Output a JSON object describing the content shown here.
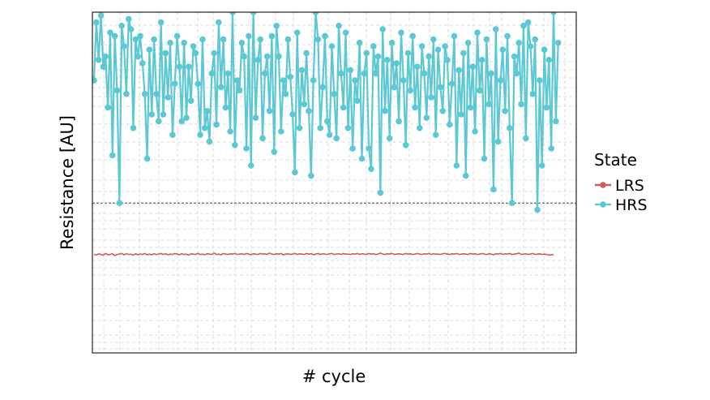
{
  "chart_data": {
    "type": "line",
    "title": "",
    "xlabel": "# cycle",
    "ylabel": "Resistance [AU]",
    "grid": true,
    "x_range": [
      1,
      200
    ],
    "y_range": [
      0,
      100
    ],
    "threshold": 44,
    "legend": {
      "title": "State",
      "position": "right",
      "entries": [
        {
          "label": "LRS",
          "color": "#CD5C5C"
        },
        {
          "label": "HRS",
          "color": "#5BC8D4"
        }
      ]
    },
    "series": [
      {
        "name": "LRS",
        "color": "#CD5C5C",
        "markers": false,
        "values": [
          29.0,
          28.7,
          29.1,
          28.9,
          28.7,
          29.2,
          28.8,
          28.9,
          29.1,
          28.6,
          28.9,
          29.0,
          29.2,
          28.8,
          29.1,
          28.9,
          29.0,
          28.7,
          29.1,
          28.8,
          29.0,
          28.9,
          29.2,
          28.8,
          29.0,
          28.8,
          29.1,
          28.9,
          29.0,
          29.2,
          28.9,
          29.1,
          28.8,
          29.0,
          28.9,
          29.2,
          29.0,
          28.8,
          29.1,
          28.9,
          29.0,
          28.7,
          29.1,
          29.0,
          28.9,
          29.2,
          28.9,
          29.0,
          28.8,
          29.1,
          29.0,
          28.9,
          29.3,
          28.9,
          29.0,
          28.8,
          29.2,
          29.0,
          28.9,
          29.1,
          29.0,
          29.2,
          28.9,
          29.0,
          29.1,
          28.9,
          29.2,
          29.0,
          28.8,
          29.1,
          29.0,
          28.9,
          29.2,
          29.0,
          29.1,
          28.9,
          29.3,
          29.0,
          28.9,
          29.1,
          29.0,
          29.2,
          28.8,
          29.0,
          29.1,
          28.9,
          29.0,
          29.2,
          28.9,
          29.1,
          29.0,
          28.9,
          29.2,
          29.0,
          29.1,
          28.8,
          29.0,
          29.2,
          28.9,
          29.1,
          29.0,
          28.9,
          29.1,
          29.2,
          28.9,
          29.0,
          29.1,
          28.9,
          29.2,
          29.0,
          29.0,
          28.9,
          29.1,
          29.0,
          29.2,
          28.9,
          29.1,
          29.0,
          28.9,
          29.2,
          29.0,
          29.1,
          28.9,
          29.0,
          29.3,
          29.0,
          28.9,
          29.1,
          29.0,
          29.2,
          28.9,
          29.0,
          29.1,
          29.0,
          28.9,
          29.2,
          29.0,
          29.1,
          28.9,
          29.0,
          29.2,
          29.0,
          28.9,
          29.1,
          29.0,
          29.2,
          28.9,
          29.1,
          29.0,
          29.0,
          28.9,
          29.1,
          29.2,
          29.0,
          28.9,
          29.1,
          29.0,
          29.2,
          28.9,
          29.0,
          29.1,
          29.0,
          28.9,
          29.2,
          29.0,
          29.1,
          28.9,
          29.0,
          29.2,
          29.0,
          28.9,
          29.1,
          29.0,
          28.8,
          29.1,
          29.0,
          29.2,
          28.9,
          29.1,
          29.0,
          29.2,
          28.9,
          29.0,
          29.1,
          29.3,
          28.9,
          29.0,
          29.1,
          28.9,
          29.0,
          29.2,
          28.9,
          29.0,
          29.1,
          28.9,
          29.0,
          28.9,
          28.7,
          28.8,
          28.9
        ]
      },
      {
        "name": "HRS",
        "color": "#5BC8D4",
        "markers": true,
        "values": [
          80.0,
          97.0,
          86.0,
          99.0,
          84.0,
          87.0,
          72.0,
          94.0,
          58.0,
          93.0,
          77.0,
          44.0,
          96.0,
          90.0,
          76.0,
          98.0,
          95.0,
          66.0,
          92.0,
          87.0,
          93.0,
          85.0,
          76.0,
          57.0,
          89.0,
          70.0,
          92.0,
          76.0,
          68.0,
          97.0,
          70.0,
          88.0,
          75.0,
          91.0,
          64.0,
          79.0,
          93.0,
          84.0,
          68.0,
          91.0,
          69.0,
          84.0,
          74.0,
          90.0,
          88.0,
          79.0,
          64.0,
          92.0,
          66.0,
          71.0,
          62.0,
          82.0,
          88.0,
          67.0,
          97.0,
          78.0,
          92.0,
          72.0,
          82.0,
          65.0,
          100.0,
          61.0,
          80.0,
          77.0,
          91.0,
          87.0,
          60.0,
          93.0,
          55.0,
          100.0,
          69.0,
          86.0,
          92.0,
          63.0,
          82.0,
          87.0,
          71.0,
          93.0,
          59.0,
          96.0,
          87.0,
          65.0,
          80.0,
          76.0,
          92.0,
          81.0,
          70.0,
          53.0,
          94.0,
          66.0,
          83.0,
          73.0,
          88.0,
          71.0,
          52.0,
          80.0,
          100.0,
          92.0,
          66.0,
          78.0,
          93.0,
          68.0,
          64.0,
          90.0,
          76.0,
          63.0,
          96.0,
          82.0,
          72.0,
          94.0,
          66.0,
          83.0,
          60.0,
          80.0,
          74.0,
          91.0,
          57.0,
          82.0,
          88.0,
          60.0,
          54.0,
          90.0,
          82.0,
          87.0,
          47.0,
          95.0,
          71.0,
          86.0,
          63.0,
          91.0,
          78.0,
          85.0,
          68.0,
          94.0,
          80.0,
          61.0,
          88.0,
          77.0,
          93.0,
          72.0,
          84.0,
          66.0,
          90.0,
          82.0,
          69.0,
          87.0,
          75.0,
          92.0,
          64.0,
          89.0,
          78.0,
          71.0,
          90.0,
          86.0,
          67.0,
          79.0,
          93.0,
          55.0,
          83.0,
          70.0,
          88.0,
          52.0,
          91.0,
          72.0,
          84.0,
          65.0,
          94.0,
          77.0,
          86.0,
          57.0,
          92.0,
          73.0,
          82.0,
          48.0,
          95.0,
          62.0,
          80.0,
          89.0,
          71.0,
          93.0,
          66.0,
          44.0,
          87.0,
          82.0,
          91.0,
          73.0,
          96.0,
          63.0,
          97.0,
          90.0,
          76.0,
          92.0,
          42.0,
          80.0,
          55.0,
          89.0,
          72.0,
          86.0,
          60.0,
          100.0,
          68.0,
          91.0
        ]
      }
    ]
  }
}
